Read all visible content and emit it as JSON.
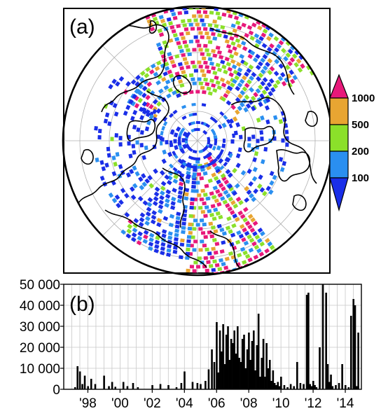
{
  "chart_data": [
    {
      "type": "map",
      "panel_label": "(a)",
      "colorbar": {
        "labels": [
          "100",
          "200",
          "500",
          "1000"
        ],
        "colors": [
          "#1a2ee8",
          "#2a8ff0",
          "#8be02a",
          "#e8a532",
          "#e8197a"
        ]
      }
    },
    {
      "type": "bar",
      "panel_label": "(b)",
      "ylim": [
        0,
        50000
      ],
      "yticks": [
        "0",
        "10 000",
        "20 000",
        "30 000",
        "40 000",
        "50 000"
      ],
      "xlim": [
        1996.5,
        2015.0
      ],
      "xticks": [
        {
          "label": "'98",
          "value": 1998.0
        },
        {
          "label": "'00",
          "value": 2000.0
        },
        {
          "label": "'02",
          "value": 2002.0
        },
        {
          "label": "'04",
          "value": 2004.0
        },
        {
          "label": "'06",
          "value": 2006.0
        },
        {
          "label": "'08",
          "value": 2008.0
        },
        {
          "label": "'10",
          "value": 2010.0
        },
        {
          "label": "'12",
          "value": 2012.0
        },
        {
          "label": "'14",
          "value": 2014.0
        }
      ],
      "bar_color": "#000000",
      "series": [
        {
          "x": [
            1997.2,
            1997.35,
            1997.5,
            1997.65,
            1997.8,
            1998.0,
            1998.2,
            1998.45,
            1999.0,
            1999.3,
            1999.5,
            1999.7,
            2000.2,
            2000.45,
            2000.8,
            2001.1,
            2002.0,
            2002.5,
            2003.0,
            2003.5,
            2003.8,
            2004.0,
            2004.5,
            2004.8,
            2005.0,
            2005.3,
            2005.5,
            2005.7,
            2005.85,
            2006.0,
            2006.1,
            2006.2,
            2006.3,
            2006.4,
            2006.5,
            2006.6,
            2006.7,
            2006.8,
            2006.9,
            2007.0,
            2007.1,
            2007.2,
            2007.3,
            2007.4,
            2007.5,
            2007.6,
            2007.7,
            2007.8,
            2007.9,
            2008.0,
            2008.1,
            2008.2,
            2008.3,
            2008.4,
            2008.5,
            2008.6,
            2008.7,
            2008.8,
            2008.9,
            2009.0,
            2009.1,
            2009.2,
            2009.3,
            2009.4,
            2009.5,
            2009.6,
            2009.7,
            2009.8,
            2009.9,
            2010.0,
            2010.2,
            2010.4,
            2010.6,
            2010.8,
            2011.0,
            2011.2,
            2011.4,
            2011.6,
            2011.7,
            2011.8,
            2011.9,
            2012.0,
            2012.1,
            2012.2,
            2012.4,
            2012.6,
            2012.8,
            2012.9,
            2013.0,
            2013.1,
            2013.2,
            2013.4,
            2013.6,
            2013.8,
            2014.0,
            2014.2,
            2014.35,
            2014.5,
            2014.6,
            2014.7,
            2014.8
          ],
          "values": [
            1000,
            11000,
            8500,
            2500,
            6500,
            1500,
            5000,
            2500,
            6500,
            1500,
            3500,
            1200,
            3500,
            1500,
            3000,
            1000,
            2000,
            2500,
            2000,
            1000,
            3000,
            8500,
            3500,
            3000,
            2500,
            4000,
            9500,
            19000,
            13000,
            32000,
            8000,
            28000,
            18000,
            31000,
            12000,
            26000,
            30000,
            14000,
            24000,
            22000,
            28000,
            17000,
            30000,
            15000,
            13000,
            24000,
            26000,
            10000,
            19000,
            27000,
            14000,
            23000,
            28000,
            9000,
            21000,
            36000,
            6000,
            15000,
            24000,
            6000,
            22000,
            10000,
            14000,
            4000,
            9000,
            3000,
            2000,
            3500,
            1500,
            6000,
            2000,
            1000,
            2500,
            1500,
            13000,
            3000,
            2500,
            45000,
            46000,
            2500,
            1500,
            4000,
            2000,
            1000,
            20000,
            50000,
            46000,
            12000,
            3500,
            7000,
            1500,
            2000,
            3000,
            12000,
            2000,
            1000,
            35000,
            43000,
            40000,
            1500,
            27000
          ]
        }
      ]
    }
  ]
}
